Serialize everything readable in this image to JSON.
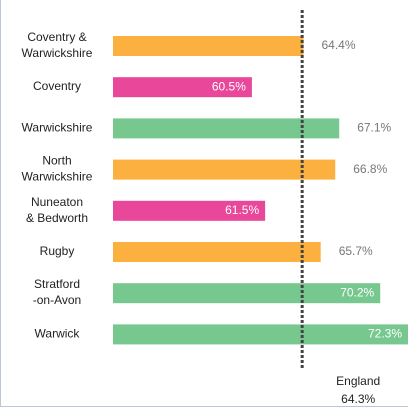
{
  "chart_data": {
    "type": "bar",
    "orientation": "horizontal",
    "categories": [
      [
        "Coventry &",
        "Warwickshire"
      ],
      [
        "Coventry"
      ],
      [
        "Warwickshire"
      ],
      [
        "North",
        "Warwickshire"
      ],
      [
        "Nuneaton",
        "& Bedworth"
      ],
      [
        "Rugby"
      ],
      [
        "Stratford",
        "-on-Avon"
      ],
      [
        "Warwick"
      ]
    ],
    "values": [
      64.4,
      60.5,
      67.1,
      66.8,
      61.5,
      65.7,
      70.2,
      72.3
    ],
    "value_labels": [
      "64.4%",
      "60.5%",
      "67.1%",
      "66.8%",
      "61.5%",
      "65.7%",
      "70.2%",
      "72.3%"
    ],
    "colors": [
      "#fbb040",
      "#e8479a",
      "#76c88f",
      "#fbb040",
      "#e8479a",
      "#fbb040",
      "#76c88f",
      "#76c88f"
    ],
    "xlim": [
      50,
      72.3
    ],
    "reference": {
      "name": "England",
      "value": 64.3,
      "label": "64.3%"
    }
  }
}
